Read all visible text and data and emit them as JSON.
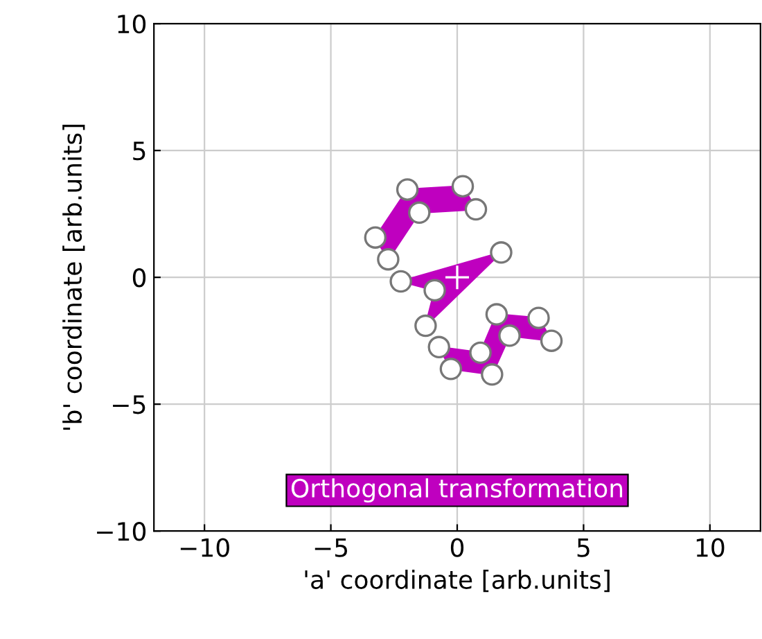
{
  "chart_data": {
    "type": "scatter",
    "xlabel": "'a' coordinate [arb.units]",
    "ylabel": "'b' coordinate [arb.units]",
    "xlim": [
      -12,
      12
    ],
    "ylim": [
      -10,
      10
    ],
    "xticks": [
      {
        "value": -10,
        "label": "−10"
      },
      {
        "value": -5,
        "label": "−5"
      },
      0,
      5,
      10
    ],
    "yticks": [
      {
        "value": -10,
        "label": "−10"
      },
      {
        "value": -5,
        "label": "−5"
      },
      0,
      5,
      10
    ],
    "grid": true,
    "marker": "circle",
    "series": [
      {
        "type": "area",
        "color": "#bf00bf",
        "x": [
          -1.97,
          0.22,
          0.74,
          -1.5,
          -2.73,
          -3.24
        ],
        "values": [
          3.46,
          3.59,
          2.68,
          2.55,
          0.71,
          1.57
        ]
      },
      {
        "type": "area",
        "color": "#bf00bf",
        "x": [
          -2.23,
          -0.89,
          -1.25,
          1.74
        ],
        "values": [
          -0.16,
          -0.51,
          -1.91,
          0.98
        ]
      },
      {
        "type": "area",
        "color": "#bf00bf",
        "x": [
          -0.72,
          0.92,
          1.56,
          3.22,
          3.73,
          2.07,
          1.38,
          -0.25
        ],
        "values": [
          -2.75,
          -2.97,
          -1.46,
          -1.6,
          -2.5,
          -2.3,
          -3.83,
          -3.61
        ]
      },
      {
        "color": "#ffffff",
        "marker": "cross",
        "x": [
          0
        ],
        "values": [
          0
        ]
      }
    ],
    "annotations": [
      "Orthogonal transformation"
    ]
  }
}
